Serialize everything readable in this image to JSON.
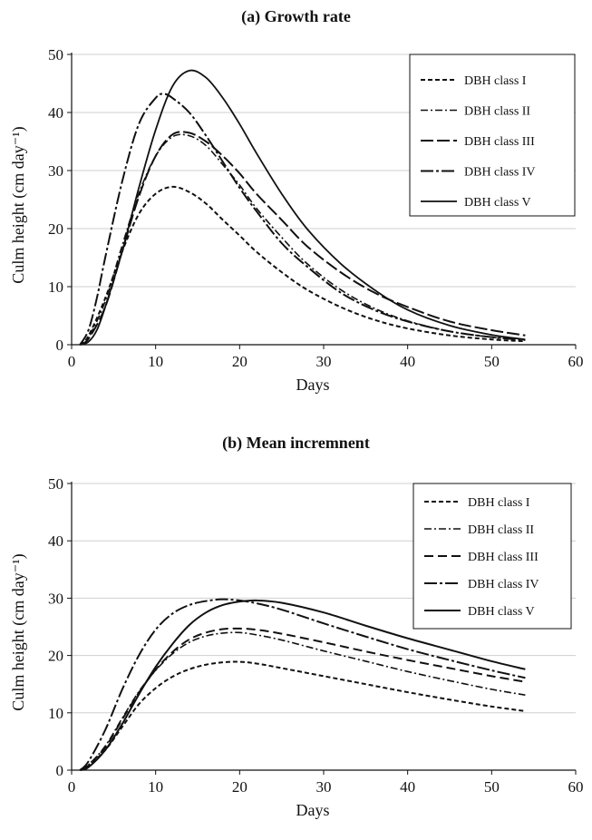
{
  "chart_data": [
    {
      "type": "line",
      "title": "(a) Growth rate",
      "xlabel": "Days",
      "ylabel": "Culm height (cm day⁻¹)",
      "xlim": [
        0,
        60
      ],
      "ylim": [
        0,
        50
      ],
      "xticks": [
        "0",
        "10",
        "20",
        "30",
        "40",
        "50",
        "60"
      ],
      "yticks": [
        "0",
        "10",
        "20",
        "30",
        "40",
        "50"
      ],
      "grid": "horizontal",
      "legend_position": "top-right",
      "series": [
        {
          "name": "DBH class I",
          "dash": "5,3",
          "width": 2,
          "points": [
            [
              1,
              0
            ],
            [
              2,
              1.5
            ],
            [
              4,
              8
            ],
            [
              6,
              16
            ],
            [
              8,
              22.5
            ],
            [
              10,
              26
            ],
            [
              12,
              27.2
            ],
            [
              14,
              26.3
            ],
            [
              16,
              24.3
            ],
            [
              18,
              21.5
            ],
            [
              20,
              18.8
            ],
            [
              22,
              16
            ],
            [
              25,
              12.5
            ],
            [
              28,
              9.5
            ],
            [
              32,
              6.5
            ],
            [
              36,
              4.3
            ],
            [
              40,
              2.8
            ],
            [
              45,
              1.6
            ],
            [
              50,
              0.9
            ],
            [
              54,
              0.6
            ]
          ]
        },
        {
          "name": "DBH class II",
          "dash": "8,3,2,3",
          "width": 1.6,
          "points": [
            [
              1,
              0
            ],
            [
              2,
              1.2
            ],
            [
              4,
              7.5
            ],
            [
              6,
              17
            ],
            [
              8,
              26
            ],
            [
              10,
              32.5
            ],
            [
              12,
              35.8
            ],
            [
              14,
              36
            ],
            [
              16,
              34.3
            ],
            [
              18,
              31
            ],
            [
              20,
              27.5
            ],
            [
              22,
              23.5
            ],
            [
              25,
              18.5
            ],
            [
              28,
              14
            ],
            [
              32,
              9.5
            ],
            [
              36,
              6.3
            ],
            [
              40,
              4.1
            ],
            [
              45,
              2.3
            ],
            [
              50,
              1.3
            ],
            [
              54,
              0.9
            ]
          ]
        },
        {
          "name": "DBH class III",
          "dash": "14,4",
          "width": 2,
          "points": [
            [
              1,
              0
            ],
            [
              2,
              1
            ],
            [
              4,
              6.5
            ],
            [
              6,
              16
            ],
            [
              8,
              25.5
            ],
            [
              10,
              32.5
            ],
            [
              12,
              36.2
            ],
            [
              14,
              36.5
            ],
            [
              16,
              35
            ],
            [
              18,
              32.5
            ],
            [
              20,
              29.5
            ],
            [
              22,
              26
            ],
            [
              25,
              21.5
            ],
            [
              28,
              17
            ],
            [
              32,
              12.5
            ],
            [
              36,
              9
            ],
            [
              40,
              6.5
            ],
            [
              45,
              4
            ],
            [
              50,
              2.5
            ],
            [
              54,
              1.6
            ]
          ]
        },
        {
          "name": "DBH class IV",
          "dash": "14,3,3,3",
          "width": 2,
          "points": [
            [
              1,
              0
            ],
            [
              2,
              2.5
            ],
            [
              3,
              8
            ],
            [
              4,
              15
            ],
            [
              6,
              28
            ],
            [
              8,
              38
            ],
            [
              10,
              42.5
            ],
            [
              11,
              43.2
            ],
            [
              12,
              42.5
            ],
            [
              14,
              40
            ],
            [
              16,
              36
            ],
            [
              18,
              31.5
            ],
            [
              20,
              27
            ],
            [
              22,
              23
            ],
            [
              25,
              17.5
            ],
            [
              28,
              13.5
            ],
            [
              32,
              9
            ],
            [
              36,
              6
            ],
            [
              40,
              4
            ],
            [
              45,
              2.3
            ],
            [
              50,
              1.3
            ],
            [
              54,
              0.8
            ]
          ]
        },
        {
          "name": "DBH class V",
          "dash": "",
          "width": 1.8,
          "points": [
            [
              1,
              0
            ],
            [
              2,
              0.5
            ],
            [
              3,
              2.5
            ],
            [
              4,
              6.5
            ],
            [
              6,
              16
            ],
            [
              8,
              27
            ],
            [
              10,
              37
            ],
            [
              12,
              44.5
            ],
            [
              14,
              47.2
            ],
            [
              16,
              46
            ],
            [
              18,
              42.5
            ],
            [
              20,
              38
            ],
            [
              22,
              33
            ],
            [
              25,
              26
            ],
            [
              28,
              20
            ],
            [
              32,
              14
            ],
            [
              36,
              9.5
            ],
            [
              40,
              6
            ],
            [
              45,
              3.3
            ],
            [
              50,
              1.7
            ],
            [
              54,
              0.9
            ]
          ]
        }
      ]
    },
    {
      "type": "line",
      "title": "(b) Mean incremnent",
      "xlabel": "Days",
      "ylabel": "Culm height (cm day⁻¹)",
      "xlim": [
        0,
        60
      ],
      "ylim": [
        0,
        50
      ],
      "xticks": [
        "0",
        "10",
        "20",
        "30",
        "40",
        "50",
        "60"
      ],
      "yticks": [
        "0",
        "10",
        "20",
        "30",
        "40",
        "50"
      ],
      "grid": "horizontal",
      "legend_position": "top-right",
      "series": [
        {
          "name": "DBH class I",
          "dash": "5,3",
          "width": 2,
          "points": [
            [
              1,
              0
            ],
            [
              2,
              0.8
            ],
            [
              4,
              3.5
            ],
            [
              6,
              7.5
            ],
            [
              8,
              11.5
            ],
            [
              10,
              14.3
            ],
            [
              12,
              16.3
            ],
            [
              14,
              17.6
            ],
            [
              16,
              18.4
            ],
            [
              18,
              18.8
            ],
            [
              20,
              18.9
            ],
            [
              22,
              18.6
            ],
            [
              25,
              17.8
            ],
            [
              30,
              16.4
            ],
            [
              35,
              15
            ],
            [
              40,
              13.6
            ],
            [
              45,
              12.3
            ],
            [
              50,
              11.1
            ],
            [
              54,
              10.3
            ]
          ]
        },
        {
          "name": "DBH class II",
          "dash": "8,3,2,3",
          "width": 1.6,
          "points": [
            [
              1,
              0
            ],
            [
              2,
              0.9
            ],
            [
              4,
              4.2
            ],
            [
              6,
              9
            ],
            [
              8,
              13.7
            ],
            [
              10,
              17.4
            ],
            [
              12,
              20.3
            ],
            [
              14,
              22.3
            ],
            [
              16,
              23.4
            ],
            [
              18,
              23.9
            ],
            [
              20,
              24
            ],
            [
              22,
              23.6
            ],
            [
              25,
              22.7
            ],
            [
              30,
              20.8
            ],
            [
              35,
              19
            ],
            [
              40,
              17.2
            ],
            [
              45,
              15.6
            ],
            [
              50,
              14.1
            ],
            [
              54,
              13.1
            ]
          ]
        },
        {
          "name": "DBH class III",
          "dash": "10,5",
          "width": 2,
          "points": [
            [
              1,
              0
            ],
            [
              2,
              0.9
            ],
            [
              4,
              4
            ],
            [
              6,
              8.8
            ],
            [
              8,
              13.5
            ],
            [
              10,
              17.5
            ],
            [
              12,
              20.6
            ],
            [
              14,
              22.8
            ],
            [
              16,
              24
            ],
            [
              18,
              24.6
            ],
            [
              20,
              24.7
            ],
            [
              22,
              24.5
            ],
            [
              25,
              23.8
            ],
            [
              30,
              22.3
            ],
            [
              35,
              20.7
            ],
            [
              40,
              19.2
            ],
            [
              45,
              17.8
            ],
            [
              50,
              16.4
            ],
            [
              54,
              15.4
            ]
          ]
        },
        {
          "name": "DBH class IV",
          "dash": "14,3,3,3",
          "width": 2,
          "points": [
            [
              1,
              0
            ],
            [
              2,
              1.5
            ],
            [
              4,
              7
            ],
            [
              6,
              14
            ],
            [
              8,
              20
            ],
            [
              10,
              24.5
            ],
            [
              12,
              27.3
            ],
            [
              14,
              28.8
            ],
            [
              16,
              29.5
            ],
            [
              18,
              29.8
            ],
            [
              20,
              29.6
            ],
            [
              22,
              29.1
            ],
            [
              25,
              28
            ],
            [
              30,
              25.6
            ],
            [
              35,
              23.3
            ],
            [
              40,
              21.1
            ],
            [
              45,
              19.2
            ],
            [
              50,
              17.4
            ],
            [
              54,
              16.1
            ]
          ]
        },
        {
          "name": "DBH class V",
          "dash": "",
          "width": 2,
          "points": [
            [
              1,
              0
            ],
            [
              2,
              0.5
            ],
            [
              4,
              3.5
            ],
            [
              6,
              8
            ],
            [
              8,
              13.2
            ],
            [
              10,
              18
            ],
            [
              12,
              22
            ],
            [
              14,
              25.3
            ],
            [
              16,
              27.5
            ],
            [
              18,
              28.8
            ],
            [
              20,
              29.4
            ],
            [
              22,
              29.6
            ],
            [
              25,
              29.2
            ],
            [
              30,
              27.5
            ],
            [
              35,
              25.2
            ],
            [
              40,
              23
            ],
            [
              45,
              21
            ],
            [
              50,
              19
            ],
            [
              54,
              17.6
            ]
          ]
        }
      ]
    }
  ]
}
